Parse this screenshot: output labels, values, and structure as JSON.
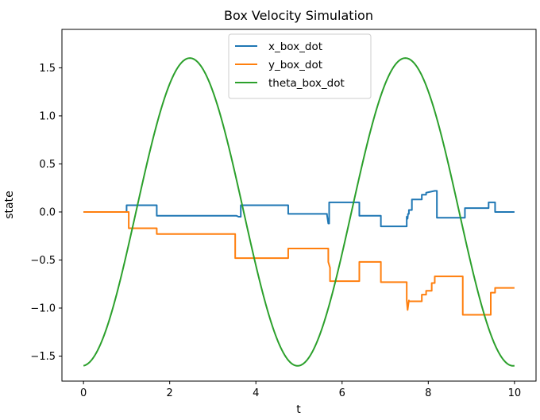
{
  "chart_data": {
    "type": "line",
    "title": "Box Velocity Simulation",
    "xlabel": "t",
    "ylabel": "state",
    "xlim": [
      -0.5,
      10.5
    ],
    "ylim": [
      -1.76,
      1.9
    ],
    "xticks": [
      0,
      2,
      4,
      6,
      8,
      10
    ],
    "xtick_labels": [
      "0",
      "2",
      "4",
      "6",
      "8",
      "10"
    ],
    "yticks": [
      1.5,
      1.0,
      0.5,
      0.0,
      -0.5,
      -1.0,
      -1.5
    ],
    "ytick_labels": [
      "1.5",
      "1.0",
      "0.5",
      "0.0",
      "−0.5",
      "−1.0",
      "−1.5"
    ],
    "grid": false,
    "legend_position": "top-center",
    "series": [
      {
        "name": "x_box_dot",
        "color": "#1f77b4",
        "x": [
          0,
          1.0,
          1.0,
          1.7,
          1.7,
          3.55,
          3.6,
          3.65,
          3.65,
          4.75,
          4.75,
          5.65,
          5.65,
          5.68,
          5.7,
          5.7,
          5.72,
          5.72,
          6.4,
          6.4,
          6.9,
          6.9,
          7.5,
          7.5,
          7.52,
          7.53,
          7.55,
          7.55,
          7.62,
          7.62,
          7.85,
          7.85,
          7.95,
          7.95,
          8.15,
          8.2,
          8.2,
          8.85,
          8.85,
          9.4,
          9.4,
          9.55,
          9.55,
          10.0
        ],
        "y": [
          0,
          0,
          0.07,
          0.07,
          -0.04,
          -0.04,
          -0.05,
          -0.05,
          0.07,
          0.07,
          -0.02,
          -0.02,
          -0.03,
          -0.12,
          -0.12,
          0.1,
          0.1,
          0.1,
          0.1,
          -0.04,
          -0.04,
          -0.15,
          -0.15,
          -0.05,
          -0.07,
          -0.02,
          -0.02,
          0.02,
          0.02,
          0.13,
          0.13,
          0.18,
          0.18,
          0.2,
          0.22,
          0.22,
          -0.06,
          -0.06,
          0.04,
          0.04,
          0.1,
          0.1,
          0.0,
          0.0
        ]
      },
      {
        "name": "y_box_dot",
        "color": "#ff7f0e",
        "x": [
          0,
          1.05,
          1.05,
          1.7,
          1.7,
          3.52,
          3.52,
          4.75,
          4.75,
          5.68,
          5.68,
          5.72,
          5.72,
          6.4,
          6.4,
          6.9,
          6.9,
          7.5,
          7.5,
          7.52,
          7.55,
          7.55,
          7.6,
          7.62,
          7.62,
          7.85,
          7.85,
          7.95,
          7.95,
          8.08,
          8.08,
          8.15,
          8.15,
          8.8,
          8.8,
          9.45,
          9.45,
          9.55,
          9.55,
          10.0
        ],
        "y": [
          0,
          0,
          -0.17,
          -0.17,
          -0.23,
          -0.23,
          -0.48,
          -0.48,
          -0.38,
          -0.38,
          -0.52,
          -0.58,
          -0.72,
          -0.72,
          -0.52,
          -0.52,
          -0.73,
          -0.73,
          -0.92,
          -1.02,
          -0.92,
          -0.93,
          -0.93,
          -0.93,
          -0.93,
          -0.93,
          -0.86,
          -0.86,
          -0.82,
          -0.82,
          -0.74,
          -0.74,
          -0.67,
          -0.67,
          -1.07,
          -1.07,
          -0.84,
          -0.84,
          -0.79,
          -0.79
        ]
      },
      {
        "name": "theta_box_dot",
        "color": "#2ca02c",
        "function": "-1.6*cos(2*pi*t/5) + 0.065*sin(2*pi*t/5)",
        "x_range": [
          0,
          10
        ]
      }
    ]
  }
}
